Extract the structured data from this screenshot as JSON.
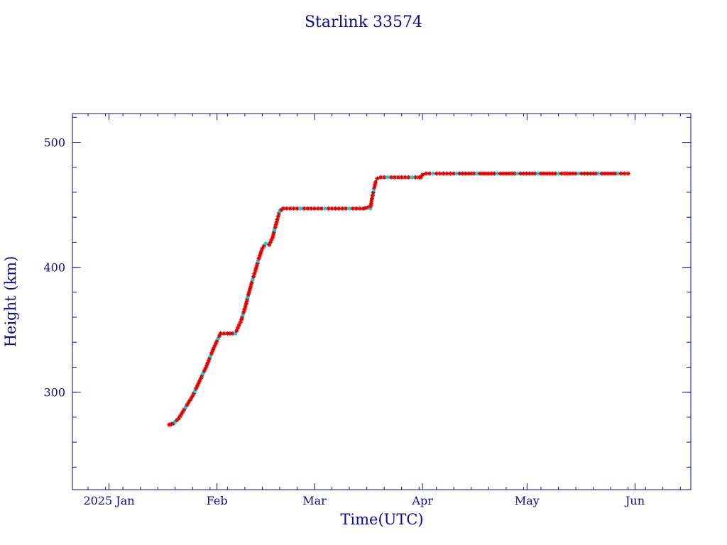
{
  "chart_data": {
    "type": "scatter",
    "title": "Starlink 33574",
    "xlabel": "Time(UTC)",
    "ylabel": "Height (km)",
    "x_unit": "day of year 2025",
    "xlim": [
      -9.5,
      168
    ],
    "ylim": [
      222,
      523
    ],
    "x_tick_labels": [
      {
        "label": "2025 Jan",
        "x": 1
      },
      {
        "label": "Feb",
        "x": 32
      },
      {
        "label": "Mar",
        "x": 60
      },
      {
        "label": "Apr",
        "x": 91
      },
      {
        "label": "May",
        "x": 121
      },
      {
        "label": "Jun",
        "x": 152
      }
    ],
    "y_ticks": [
      300,
      400,
      500
    ],
    "grid": false,
    "legend": "none",
    "colors": {
      "axis": "#0b0b96",
      "marker_primary": "#e00000",
      "marker_secondary": "#00d0e0",
      "line": "#4a4a6a"
    },
    "series": [
      {
        "marker": "asterisk",
        "x": [
          18.3,
          19.5,
          21,
          23,
          25,
          27,
          29,
          31,
          33,
          35,
          37.3,
          39,
          40.3,
          41,
          42,
          43,
          44,
          45,
          46,
          47,
          48,
          48.5,
          49.3,
          50,
          51,
          52,
          53,
          54,
          55,
          56,
          57,
          58,
          60,
          62,
          64,
          66,
          68,
          70,
          72,
          74,
          75.5,
          76,
          76.5,
          77,
          77.5,
          78,
          79,
          80,
          82,
          84,
          86,
          88,
          90,
          90.5,
          91,
          92,
          94,
          96,
          98,
          100,
          105,
          110,
          115,
          120,
          125,
          130,
          135,
          140,
          145,
          148,
          150
        ],
        "y": [
          274,
          275,
          279,
          288,
          297,
          309,
          321,
          335,
          347,
          347,
          347,
          358,
          370,
          378,
          388,
          397,
          407,
          415,
          419,
          418,
          424,
          430,
          438,
          445,
          447,
          447,
          447,
          447,
          447,
          447,
          447,
          447,
          447,
          447,
          447,
          447,
          447,
          447,
          447,
          447,
          448,
          447,
          455,
          462,
          468,
          471,
          472,
          472,
          472,
          472,
          472,
          472,
          472,
          472,
          474,
          475,
          475,
          475,
          475,
          475,
          475,
          475,
          475,
          475,
          475,
          475,
          475,
          475,
          475,
          475,
          475
        ]
      }
    ]
  }
}
